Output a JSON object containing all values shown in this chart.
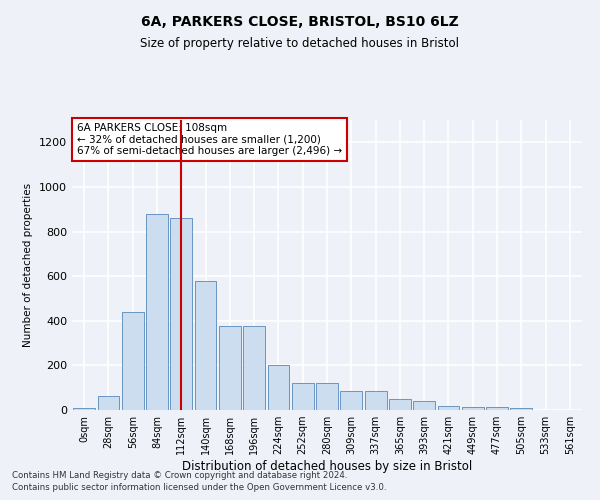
{
  "title": "6A, PARKERS CLOSE, BRISTOL, BS10 6LZ",
  "subtitle": "Size of property relative to detached houses in Bristol",
  "xlabel": "Distribution of detached houses by size in Bristol",
  "ylabel": "Number of detached properties",
  "bar_color": "#ccddf0",
  "bar_edge_color": "#5588bb",
  "bar_values": [
    10,
    65,
    440,
    880,
    860,
    580,
    375,
    375,
    200,
    120,
    120,
    85,
    85,
    50,
    40,
    20,
    15,
    15,
    10,
    2,
    1
  ],
  "x_labels": [
    "0sqm",
    "28sqm",
    "56sqm",
    "84sqm",
    "112sqm",
    "140sqm",
    "168sqm",
    "196sqm",
    "224sqm",
    "252sqm",
    "280sqm",
    "309sqm",
    "337sqm",
    "365sqm",
    "393sqm",
    "421sqm",
    "449sqm",
    "477sqm",
    "505sqm",
    "533sqm",
    "561sqm"
  ],
  "ylim": [
    0,
    1300
  ],
  "yticks": [
    0,
    200,
    400,
    600,
    800,
    1000,
    1200
  ],
  "vline_x": 4.0,
  "vline_color": "#cc0000",
  "annotation_text": "6A PARKERS CLOSE: 108sqm\n← 32% of detached houses are smaller (1,200)\n67% of semi-detached houses are larger (2,496) →",
  "annotation_box_color": "#ffffff",
  "annotation_box_edge_color": "#cc0000",
  "footer_line1": "Contains HM Land Registry data © Crown copyright and database right 2024.",
  "footer_line2": "Contains public sector information licensed under the Open Government Licence v3.0.",
  "background_color": "#eef2f8",
  "grid_color": "#ffffff"
}
